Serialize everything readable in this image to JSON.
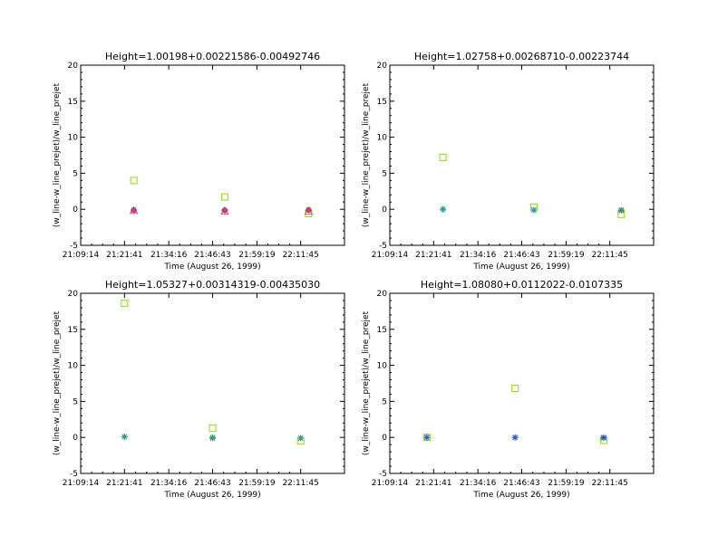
{
  "chart_data": [
    {
      "type": "scatter",
      "title": "Height=1.00198+0.00221586-0.00492746",
      "xlabel": "Time (August 26, 1999)",
      "ylabel": "(w_line-w_line_prejet)/w_line_prejet",
      "xlim": [
        "21:09:14",
        "22:24:12"
      ],
      "ylim": [
        -5,
        20
      ],
      "x_ticks": [
        "21:09:14",
        "21:21:41",
        "21:34:16",
        "21:46:43",
        "21:59:19",
        "22:11:45"
      ],
      "y_ticks": [
        -5,
        0,
        5,
        10,
        15,
        20
      ],
      "series": [
        {
          "marker": "square",
          "color": "#88dd00",
          "x": [
            "21:24:20",
            "21:50:10",
            "22:14:00"
          ],
          "y": [
            4.0,
            1.7,
            -0.6
          ]
        },
        {
          "marker": "triangle",
          "color": "#ee44aa",
          "x": [
            "21:24:20",
            "21:50:10",
            "22:14:00"
          ],
          "y": [
            -0.2,
            -0.3,
            -0.3
          ]
        },
        {
          "marker": "asterisk",
          "color": "#dd5500",
          "x": [
            "21:24:20",
            "21:50:10",
            "22:14:00"
          ],
          "y": [
            -0.1,
            -0.2,
            -0.1
          ]
        },
        {
          "marker": "diamond",
          "color": "#7733cc",
          "x": [
            "21:24:20",
            "21:50:10",
            "22:14:00"
          ],
          "y": [
            -0.1,
            -0.1,
            -0.1
          ]
        }
      ]
    },
    {
      "type": "scatter",
      "title": "Height=1.02758+0.00268710-0.00223744",
      "xlabel": "Time (August 26, 1999)",
      "ylabel": "(w_line-w_line_prejet)/w_line_prejet",
      "xlim": [
        "21:09:14",
        "22:24:12"
      ],
      "ylim": [
        -5,
        20
      ],
      "x_ticks": [
        "21:09:14",
        "21:21:41",
        "21:34:16",
        "21:46:43",
        "21:59:19",
        "22:11:45"
      ],
      "y_ticks": [
        -5,
        0,
        5,
        10,
        15,
        20
      ],
      "series": [
        {
          "marker": "square",
          "color": "#88dd00",
          "x": [
            "21:24:20",
            "21:50:10",
            "22:15:00"
          ],
          "y": [
            7.2,
            0.3,
            -0.7
          ]
        },
        {
          "marker": "asterisk",
          "color": "#dd5500",
          "x": [
            "21:24:20",
            "21:50:10",
            "22:15:00"
          ],
          "y": [
            0.0,
            -0.1,
            -0.2
          ]
        },
        {
          "marker": "asterisk",
          "color": "#1aa0a0",
          "x": [
            "21:24:20",
            "21:50:10",
            "22:15:00"
          ],
          "y": [
            0.0,
            -0.1,
            -0.1
          ]
        }
      ]
    },
    {
      "type": "scatter",
      "title": "Height=1.05327+0.00314319-0.00435030",
      "xlabel": "Time (August 26, 1999)",
      "ylabel": "(w_line-w_line_prejet)/w_line_prejet",
      "xlim": [
        "21:09:14",
        "22:24:12"
      ],
      "ylim": [
        -5,
        20
      ],
      "x_ticks": [
        "21:09:14",
        "21:21:41",
        "21:34:16",
        "21:46:43",
        "21:59:19",
        "22:11:45"
      ],
      "y_ticks": [
        -5,
        0,
        5,
        10,
        15,
        20
      ],
      "series": [
        {
          "marker": "square",
          "color": "#88dd00",
          "x": [
            "21:21:41",
            "21:46:43",
            "22:11:45"
          ],
          "y": [
            18.6,
            1.3,
            -0.5
          ]
        },
        {
          "marker": "asterisk",
          "color": "#dd5500",
          "x": [
            "21:21:41",
            "21:46:43",
            "22:11:45"
          ],
          "y": [
            0.1,
            -0.1,
            -0.1
          ]
        },
        {
          "marker": "asterisk",
          "color": "#1aa0a0",
          "x": [
            "21:21:41",
            "21:46:43",
            "22:11:45"
          ],
          "y": [
            0.1,
            0.0,
            -0.1
          ]
        }
      ]
    },
    {
      "type": "scatter",
      "title": "Height=1.08080+0.0112022-0.0107335",
      "xlabel": "Time (August 26, 1999)",
      "ylabel": "(w_line-w_line_prejet)/w_line_prejet",
      "xlim": [
        "21:09:14",
        "22:24:12"
      ],
      "ylim": [
        -5,
        20
      ],
      "x_ticks": [
        "21:09:14",
        "21:21:41",
        "21:34:16",
        "21:46:43",
        "21:59:19",
        "22:11:45"
      ],
      "y_ticks": [
        -5,
        0,
        5,
        10,
        15,
        20
      ],
      "series": [
        {
          "marker": "square",
          "color": "#88dd00",
          "x": [
            "21:19:45",
            "21:44:50",
            "22:10:00"
          ],
          "y": [
            0.0,
            6.8,
            -0.4
          ]
        },
        {
          "marker": "asterisk",
          "color": "#1aa0a0",
          "x": [
            "21:19:45",
            "21:44:50",
            "22:10:00"
          ],
          "y": [
            0.0,
            0.0,
            -0.1
          ]
        },
        {
          "marker": "asterisk",
          "color": "#3355cc",
          "x": [
            "21:19:45",
            "21:44:50",
            "22:10:00"
          ],
          "y": [
            0.0,
            0.0,
            0.0
          ]
        }
      ]
    }
  ]
}
